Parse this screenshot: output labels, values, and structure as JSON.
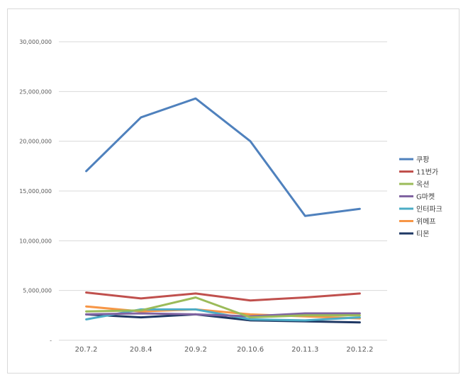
{
  "chart_data": {
    "type": "line",
    "title": "",
    "xlabel": "",
    "ylabel": "",
    "categories": [
      "20.7.2",
      "20.8.4",
      "20.9.2",
      "20.10.6",
      "20.11.3",
      "20.12.2"
    ],
    "ylim": [
      0,
      30000000
    ],
    "yticks": [
      {
        "value": 0,
        "label": "-"
      },
      {
        "value": 5000000,
        "label": "5,000,000"
      },
      {
        "value": 10000000,
        "label": "10,000,000"
      },
      {
        "value": 15000000,
        "label": "15,000,000"
      },
      {
        "value": 20000000,
        "label": "20,000,000"
      },
      {
        "value": 25000000,
        "label": "25,000,000"
      },
      {
        "value": 30000000,
        "label": "30,000,000"
      }
    ],
    "grid": true,
    "legend_position": "right",
    "series": [
      {
        "name": "쿠팡",
        "color": "#4f81bd",
        "values": [
          17000000,
          22400000,
          24300000,
          20000000,
          12500000,
          13200000
        ]
      },
      {
        "name": "11번가",
        "color": "#c0504d",
        "values": [
          4800000,
          4200000,
          4700000,
          4000000,
          4300000,
          4700000
        ]
      },
      {
        "name": "옥션",
        "color": "#9bbb59",
        "values": [
          2900000,
          3000000,
          4300000,
          2300000,
          2500000,
          2500000
        ]
      },
      {
        "name": "G마켓",
        "color": "#8064a2",
        "values": [
          2600000,
          2700000,
          2600000,
          2400000,
          2700000,
          2700000
        ]
      },
      {
        "name": "인터파크",
        "color": "#4bacc6",
        "values": [
          2100000,
          3100000,
          3100000,
          2100000,
          2000000,
          2300000
        ]
      },
      {
        "name": "위메프",
        "color": "#f79646",
        "values": [
          3400000,
          2900000,
          3100000,
          2600000,
          2400000,
          2200000
        ]
      },
      {
        "name": "티몬",
        "color": "#1f3864",
        "values": [
          2600000,
          2300000,
          2600000,
          2000000,
          1900000,
          1800000
        ]
      }
    ]
  }
}
